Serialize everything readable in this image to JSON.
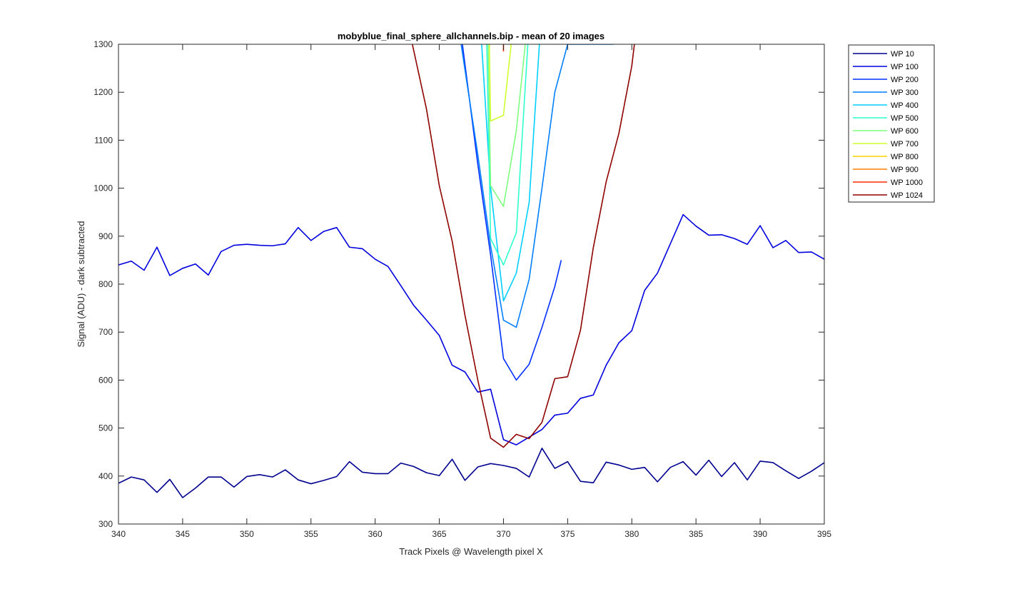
{
  "chart_data": {
    "type": "line",
    "title": "mobyblue_final_sphere_allchannels.bip - mean of 20 images",
    "xlabel": "Track Pixels @ Wavelength pixel X",
    "ylabel": "Signal (ADU) - dark subtracted",
    "xlim": [
      340,
      395
    ],
    "ylim": [
      300,
      1300
    ],
    "xticks": [
      340,
      345,
      350,
      355,
      360,
      365,
      370,
      375,
      380,
      385,
      390,
      395
    ],
    "yticks": [
      300,
      400,
      500,
      600,
      700,
      800,
      900,
      1000,
      1100,
      1200,
      1300
    ],
    "grid": false,
    "legend_position": "outside-top-right",
    "series": [
      {
        "name": "WP 10",
        "color": "#00008f",
        "x": [
          340,
          341,
          342,
          343,
          344,
          345,
          346,
          347,
          348,
          349,
          350,
          351,
          352,
          353,
          354,
          355,
          356,
          357,
          358,
          359,
          360,
          361,
          362,
          363,
          364,
          365,
          366,
          367,
          368,
          369,
          370,
          371,
          372,
          373,
          374,
          375,
          376,
          377,
          378,
          379,
          380,
          381,
          382,
          383,
          384,
          385,
          386,
          387,
          388,
          389,
          390,
          391,
          392,
          393,
          394,
          395
        ],
        "y": [
          385,
          398,
          392,
          366,
          393,
          355,
          375,
          398,
          398,
          377,
          399,
          403,
          398,
          413,
          392,
          384,
          391,
          399,
          430,
          408,
          405,
          405,
          427,
          420,
          407,
          401,
          435,
          391,
          419,
          426,
          422,
          416,
          398,
          458,
          416,
          430,
          389,
          386,
          429,
          423,
          414,
          418,
          388,
          418,
          430,
          402,
          433,
          399,
          428,
          392,
          431,
          428,
          411,
          395,
          410,
          428
        ]
      },
      {
        "name": "WP 100",
        "color": "#0000df",
        "x": [
          340,
          341,
          342,
          343,
          344,
          345,
          346,
          347,
          348,
          349,
          350,
          351,
          352,
          353,
          354,
          355,
          356,
          357,
          358,
          359,
          360,
          361,
          362,
          363,
          364,
          365,
          366,
          367,
          368,
          369,
          370,
          371,
          372,
          373,
          374,
          375,
          376,
          377,
          378,
          379,
          380,
          381,
          382,
          383,
          384,
          385,
          386,
          387,
          388,
          389,
          390,
          391,
          392,
          393,
          394,
          395
        ],
        "y": [
          840,
          848,
          829,
          877,
          818,
          833,
          842,
          819,
          868,
          881,
          883,
          881,
          880,
          884,
          918,
          891,
          910,
          918,
          877,
          874,
          852,
          837,
          797,
          756,
          725,
          693,
          631,
          617,
          575,
          581,
          476,
          465,
          481,
          497,
          527,
          531,
          562,
          569,
          631,
          678,
          703,
          787,
          823,
          884,
          945,
          921,
          902,
          903,
          895,
          883,
          922,
          876,
          891,
          866,
          867,
          852
        ]
      },
      {
        "name": "WP 200",
        "color": "#002fff",
        "x": [
          366.8,
          368,
          369,
          370,
          371,
          372,
          373,
          374,
          374.5
        ],
        "y": [
          1300,
          1050,
          860,
          645,
          600,
          633,
          710,
          795,
          850
        ]
      },
      {
        "name": "WP 300",
        "color": "#007fff",
        "x": [
          366.7,
          368,
          369,
          370,
          371,
          372,
          373,
          374,
          375,
          376,
          377,
          378,
          378.6
        ],
        "y": [
          1300,
          1070,
          880,
          725,
          710,
          810,
          1000,
          1200,
          1300,
          1300,
          1300,
          1300,
          1300
        ]
      },
      {
        "name": "WP 400",
        "color": "#00cfff",
        "x": [
          368.3,
          369,
          370,
          371,
          372,
          372.8
        ],
        "y": [
          1300,
          1000,
          765,
          823,
          970,
          1300
        ]
      },
      {
        "name": "WP 500",
        "color": "#2fffcf",
        "x": [
          368.7,
          369,
          370,
          371,
          371.9
        ],
        "y": [
          1300,
          895,
          840,
          907,
          1300
        ]
      },
      {
        "name": "WP 600",
        "color": "#7fff7f",
        "x": [
          368.8,
          369,
          370,
          371,
          371.7
        ],
        "y": [
          1300,
          1005,
          962,
          1120,
          1300
        ]
      },
      {
        "name": "WP 700",
        "color": "#cfff2f",
        "x": [
          368.9,
          369,
          370,
          370.6
        ],
        "y": [
          1300,
          1140,
          1152,
          1300
        ]
      },
      {
        "name": "WP 800",
        "color": "#ffcf00",
        "x": [],
        "y": []
      },
      {
        "name": "WP 900",
        "color": "#ff7f00",
        "x": [],
        "y": []
      },
      {
        "name": "WP 1000",
        "color": "#ff2f00",
        "x": [
          370,
          370
        ],
        "y": [
          1300,
          1285
        ]
      },
      {
        "name": "WP 1024",
        "color": "#8f0000",
        "x": [
          362.9,
          364,
          365,
          366,
          367,
          368,
          369,
          370,
          371,
          372,
          373,
          374,
          375,
          376,
          377,
          378,
          379,
          380,
          380.2
        ],
        "y": [
          1300,
          1165,
          1005,
          890,
          735,
          600,
          479,
          460,
          487,
          478,
          512,
          603,
          607,
          704,
          876,
          1013,
          1115,
          1255,
          1300
        ]
      }
    ]
  }
}
